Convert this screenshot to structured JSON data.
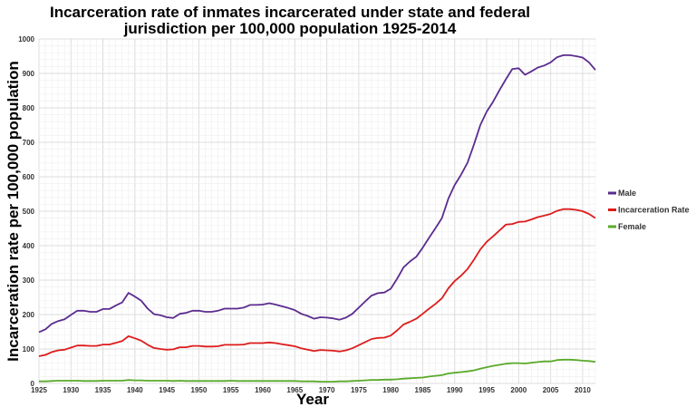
{
  "chart_data": {
    "type": "line",
    "title": [
      "Incarceration rate of inmates incarcerated under state and federal",
      "jurisdiction per 100,000 population 1925-2014"
    ],
    "xlabel": "Year",
    "ylabel": "Incarceration rate per 100,000 population",
    "xlim": [
      1925,
      2012
    ],
    "ylim": [
      0,
      1000
    ],
    "x_ticks": [
      "1925",
      "1930",
      "1935",
      "1940",
      "1945",
      "1950",
      "1955",
      "1960",
      "1965",
      "1970",
      "1975",
      "1980",
      "1985",
      "1990",
      "1995",
      "2000",
      "2005",
      "2010"
    ],
    "y_ticks": [
      "0",
      "100",
      "200",
      "300",
      "400",
      "500",
      "600",
      "700",
      "800",
      "900",
      "1000"
    ],
    "grid": true,
    "legend_position": "right",
    "x_start": 1925,
    "series": [
      {
        "name": "Male",
        "color": "#5b2c8f",
        "values": [
          149,
          157,
          173,
          181,
          186,
          199,
          211,
          211,
          208,
          208,
          216,
          216,
          226,
          235,
          263,
          252,
          240,
          217,
          201,
          198,
          192,
          190,
          202,
          205,
          211,
          211,
          208,
          208,
          211,
          217,
          217,
          217,
          220,
          228,
          228,
          229,
          233,
          229,
          224,
          219,
          213,
          202,
          196,
          188,
          192,
          191,
          189,
          185,
          191,
          202,
          220,
          238,
          255,
          262,
          264,
          275,
          304,
          337,
          354,
          368,
          394,
          423,
          451,
          480,
          536,
          576,
          606,
          641,
          693,
          750,
          789,
          818,
          851,
          883,
          913,
          915,
          896,
          906,
          917,
          923,
          932,
          947,
          953,
          953,
          950,
          946,
          932,
          910
        ]
      },
      {
        "name": "Incarceration Rate",
        "color": "#dd1c1c",
        "values": [
          79,
          83,
          91,
          96,
          98,
          104,
          110,
          110,
          109,
          109,
          113,
          113,
          118,
          123,
          137,
          131,
          124,
          112,
          103,
          100,
          98,
          99,
          105,
          105,
          109,
          109,
          107,
          107,
          108,
          112,
          112,
          112,
          113,
          117,
          117,
          117,
          119,
          117,
          114,
          111,
          108,
          102,
          98,
          94,
          97,
          96,
          95,
          93,
          96,
          102,
          111,
          120,
          129,
          132,
          133,
          139,
          154,
          171,
          179,
          188,
          202,
          217,
          231,
          247,
          276,
          297,
          313,
          332,
          359,
          389,
          411,
          427,
          444,
          461,
          463,
          469,
          470,
          476,
          483,
          487,
          492,
          501,
          506,
          506,
          504,
          500,
          492,
          480
        ]
      },
      {
        "name": "Female",
        "color": "#5aaa2a",
        "values": [
          6,
          6,
          7,
          8,
          8,
          8,
          8,
          7,
          7,
          7,
          8,
          8,
          8,
          8,
          10,
          9,
          9,
          8,
          8,
          8,
          8,
          7,
          8,
          7,
          7,
          7,
          7,
          7,
          7,
          7,
          8,
          7,
          7,
          7,
          7,
          7,
          7,
          7,
          7,
          7,
          7,
          6,
          6,
          6,
          5,
          5,
          5,
          6,
          6,
          7,
          8,
          9,
          10,
          10,
          11,
          11,
          12,
          14,
          15,
          16,
          17,
          20,
          22,
          24,
          29,
          31,
          33,
          35,
          38,
          43,
          47,
          51,
          54,
          57,
          59,
          59,
          58,
          60,
          62,
          64,
          64,
          68,
          69,
          69,
          68,
          66,
          65,
          63
        ]
      }
    ]
  }
}
